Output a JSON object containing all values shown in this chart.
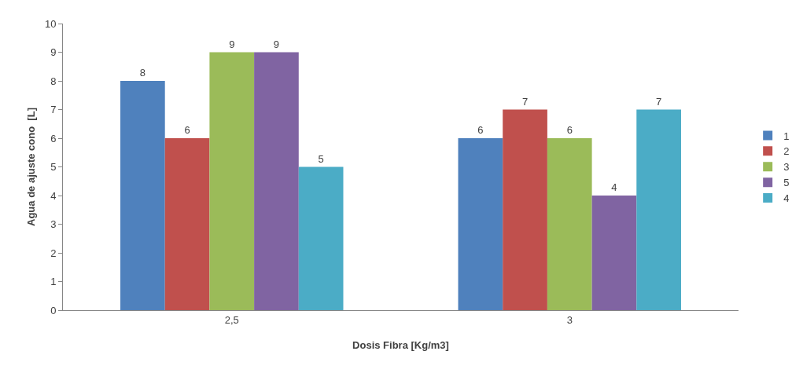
{
  "chart_data": {
    "type": "bar",
    "xlabel": "Dosis Fibra [Kg/m3]",
    "ylabel": "Agua de ajuste cono  [L]",
    "categories": [
      "2,5",
      "3"
    ],
    "series": [
      {
        "name": "1",
        "color": "#4f81bd",
        "values": [
          8,
          6
        ]
      },
      {
        "name": "2",
        "color": "#c0504d",
        "values": [
          6,
          7
        ]
      },
      {
        "name": "3",
        "color": "#9bbb59",
        "values": [
          9,
          6
        ]
      },
      {
        "name": "5",
        "color": "#8064a2",
        "values": [
          9,
          4
        ]
      },
      {
        "name": "4",
        "color": "#4bacc6",
        "values": [
          5,
          7
        ]
      }
    ],
    "ylim": [
      0,
      10
    ],
    "yticks": [
      0,
      1,
      2,
      3,
      4,
      5,
      6,
      7,
      8,
      9,
      10
    ],
    "grid": false,
    "legend": "right",
    "data_labels": true
  }
}
